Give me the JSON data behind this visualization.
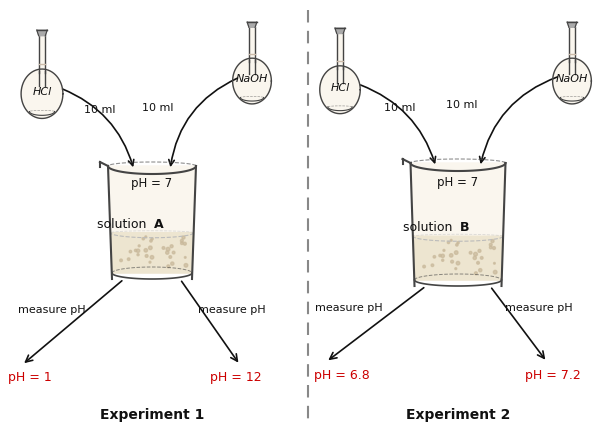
{
  "background_color": "#ffffff",
  "exp1_title": "Experiment 1",
  "exp2_title": "Experiment 2",
  "ph_center": "pH = 7",
  "exp1_left_ph": "pH = 1",
  "exp1_right_ph": "pH = 12",
  "exp2_left_ph": "pH = 6.8",
  "exp2_right_ph": "pH = 7.2",
  "hcl_label": "HCl",
  "naoh_label": "NaOH",
  "vol_label": "10 ml",
  "measure_ph": "measure pH",
  "red_color": "#cc0000",
  "black_color": "#111111",
  "outline_color": "#444444",
  "beaker_fill": "#faf6ee",
  "beaker_fill_bottom": "#ede5d0",
  "flask_fill": "#faf6ee",
  "stopper_color": "#aaaaaa",
  "divider_color": "#888888"
}
